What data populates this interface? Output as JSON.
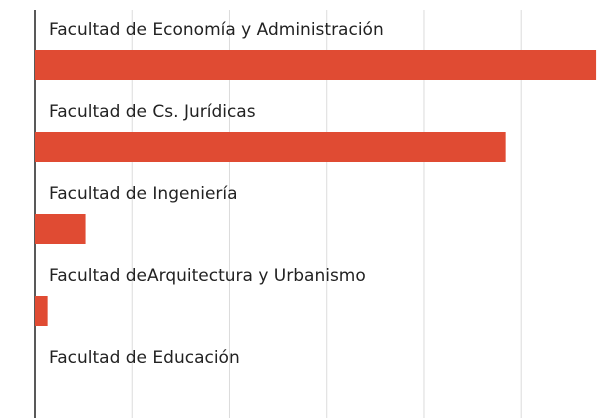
{
  "chart_data": {
    "type": "bar",
    "orientation": "horizontal",
    "categories": [
      "Facultad de Economía y Administración",
      "Facultad de Cs. Jurídicas",
      "Facultad de Ingeniería",
      "Facultad deArquitectura y Urbanismo",
      "Facultad de Educación"
    ],
    "values": [
      5.77,
      4.84,
      0.52,
      0.13,
      0
    ],
    "color": "#e04b33",
    "xlim": [
      0,
      5.8
    ],
    "xticks": [
      0,
      1,
      2,
      3,
      4,
      5
    ],
    "grid": true
  }
}
